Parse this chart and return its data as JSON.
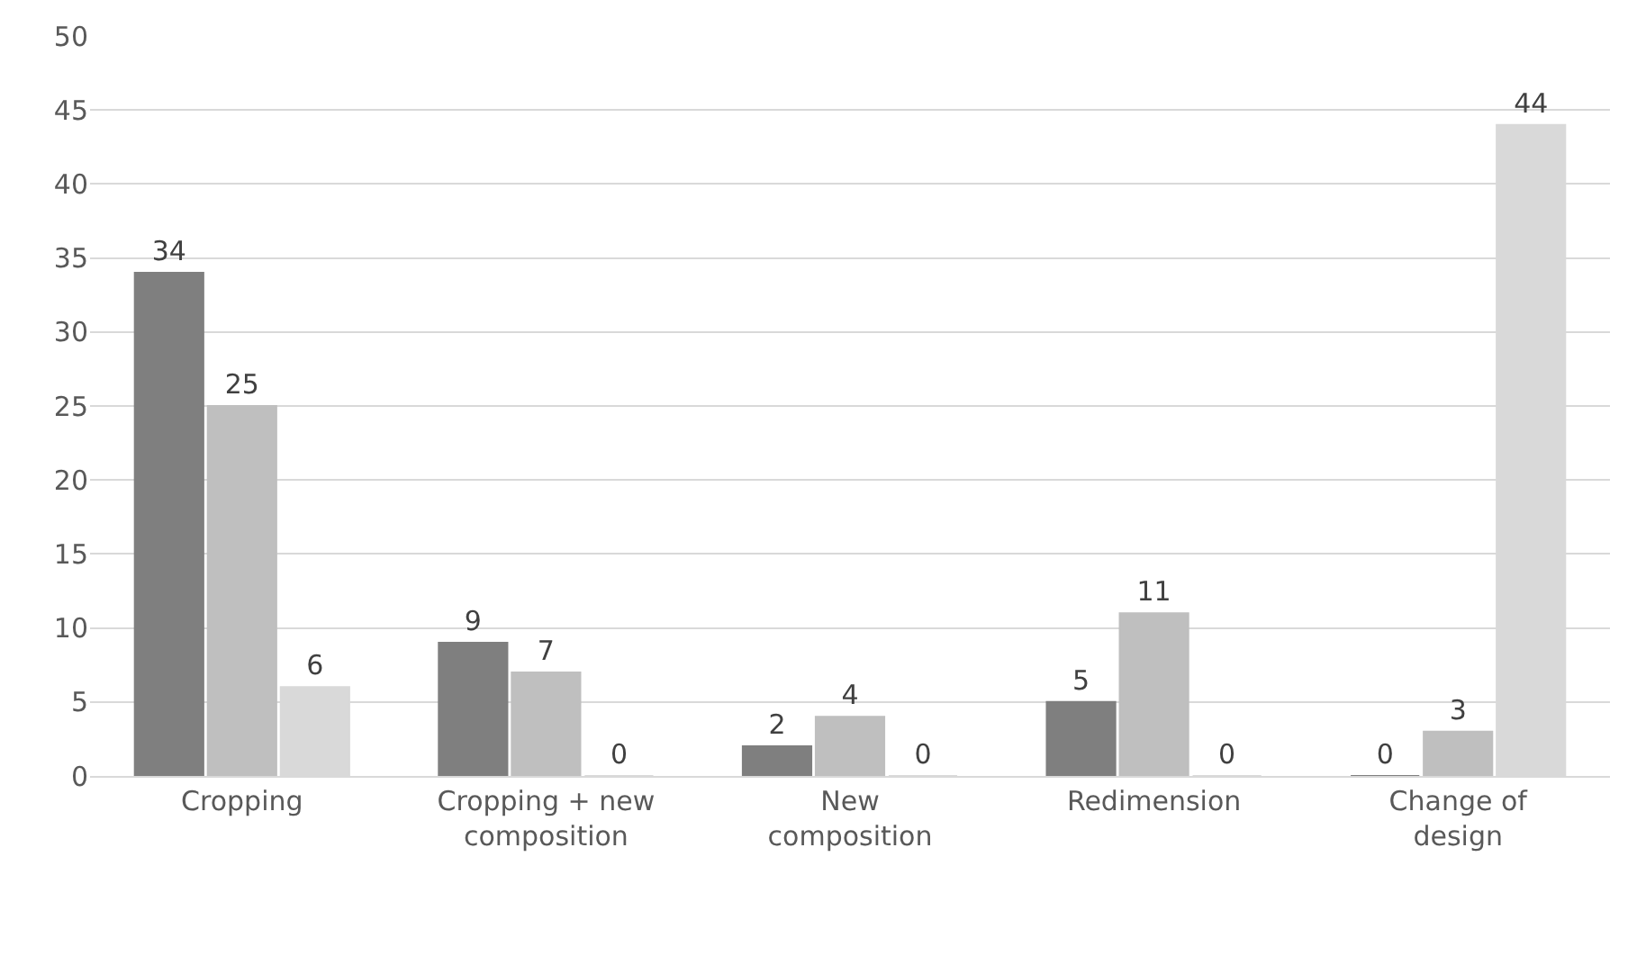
{
  "chart_data": {
    "type": "bar",
    "categories": [
      "Cropping",
      "Cropping + new composition",
      "New composition",
      "Redimension",
      "Change of design"
    ],
    "series": [
      {
        "color": "#7f7f7f",
        "values": [
          34,
          9,
          2,
          5,
          0
        ]
      },
      {
        "color": "#bfbfbf",
        "values": [
          25,
          7,
          4,
          11,
          3
        ]
      },
      {
        "color": "#d9d9d9",
        "values": [
          6,
          0,
          0,
          0,
          44
        ]
      }
    ],
    "ylim": [
      0,
      50
    ],
    "yticks": [
      0,
      5,
      10,
      15,
      20,
      25,
      30,
      35,
      40,
      45,
      50
    ],
    "grid": "y",
    "data_labels": true
  }
}
